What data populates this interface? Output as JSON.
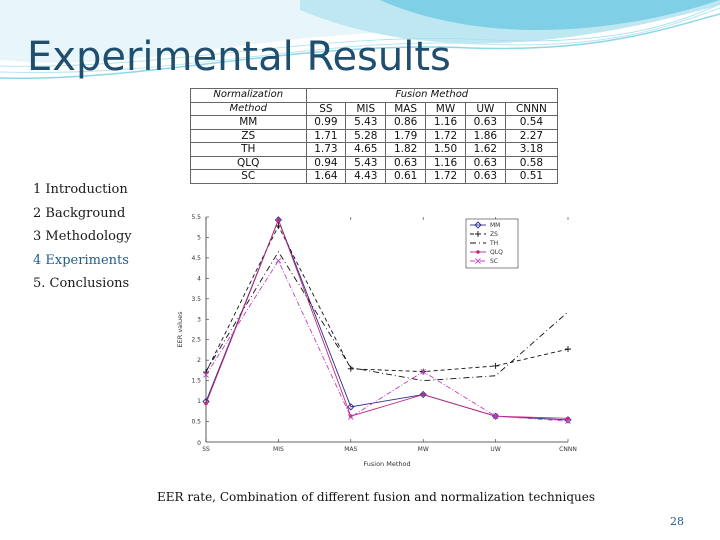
{
  "slide": {
    "title": "Experimental Results",
    "nav": [
      "1 Introduction",
      "2 Background",
      "3 Methodology",
      "4 Experiments",
      "5. Conclusions"
    ],
    "active_nav_index": 3,
    "caption": "EER rate, Combination of different fusion and normalization techniques",
    "page_number": "28",
    "accent_color": "#1f4e6e"
  },
  "table": {
    "corner_top": "Normalization",
    "corner_bottom": "Method",
    "group_header": "Fusion Method",
    "columns": [
      "SS",
      "MIS",
      "MAS",
      "MW",
      "UW",
      "CNNN"
    ],
    "rows": [
      {
        "method": "MM",
        "values": [
          "0.99",
          "5.43",
          "0.86",
          "1.16",
          "0.63",
          "0.54"
        ]
      },
      {
        "method": "ZS",
        "values": [
          "1.71",
          "5.28",
          "1.79",
          "1.72",
          "1.86",
          "2.27"
        ]
      },
      {
        "method": "TH",
        "values": [
          "1.73",
          "4.65",
          "1.82",
          "1.50",
          "1.62",
          "3.18"
        ]
      },
      {
        "method": "QLQ",
        "values": [
          "0.94",
          "5.43",
          "0.63",
          "1.16",
          "0.63",
          "0.58"
        ]
      },
      {
        "method": "SC",
        "values": [
          "1.64",
          "4.43",
          "0.61",
          "1.72",
          "0.63",
          "0.51"
        ]
      }
    ]
  },
  "chart_data": {
    "type": "line",
    "categories": [
      "SS",
      "MIS",
      "MAS",
      "MW",
      "UW",
      "CNNN"
    ],
    "xlabel": "Fusion Method",
    "ylabel": "EER values",
    "ylim": [
      0,
      5.5
    ],
    "yticks": [
      "0.5",
      "1",
      "1.5",
      "2",
      "2.5",
      "3",
      "3.5",
      "4",
      "4.5",
      "5",
      "5.5"
    ],
    "grid": false,
    "legend": "top-right",
    "series": [
      {
        "name": "MM",
        "values": [
          0.99,
          5.43,
          0.86,
          1.16,
          0.63,
          0.54
        ],
        "color": "#2b2b8c",
        "dash": "",
        "marker": "diamond"
      },
      {
        "name": "ZS",
        "values": [
          1.71,
          5.28,
          1.79,
          1.72,
          1.86,
          2.27
        ],
        "color": "#111111",
        "dash": "4,3",
        "marker": "plus"
      },
      {
        "name": "TH",
        "values": [
          1.73,
          4.65,
          1.82,
          1.5,
          1.62,
          3.18
        ],
        "color": "#111111",
        "dash": "6,3,1,3",
        "marker": "none"
      },
      {
        "name": "QLQ",
        "values": [
          0.94,
          5.43,
          0.63,
          1.16,
          0.63,
          0.58
        ],
        "color": "#c0287a",
        "dash": "",
        "marker": "dot"
      },
      {
        "name": "SC",
        "values": [
          1.64,
          4.43,
          0.61,
          1.72,
          0.63,
          0.51
        ],
        "color": "#c040c0",
        "dash": "5,2,1,2",
        "marker": "x"
      }
    ]
  }
}
